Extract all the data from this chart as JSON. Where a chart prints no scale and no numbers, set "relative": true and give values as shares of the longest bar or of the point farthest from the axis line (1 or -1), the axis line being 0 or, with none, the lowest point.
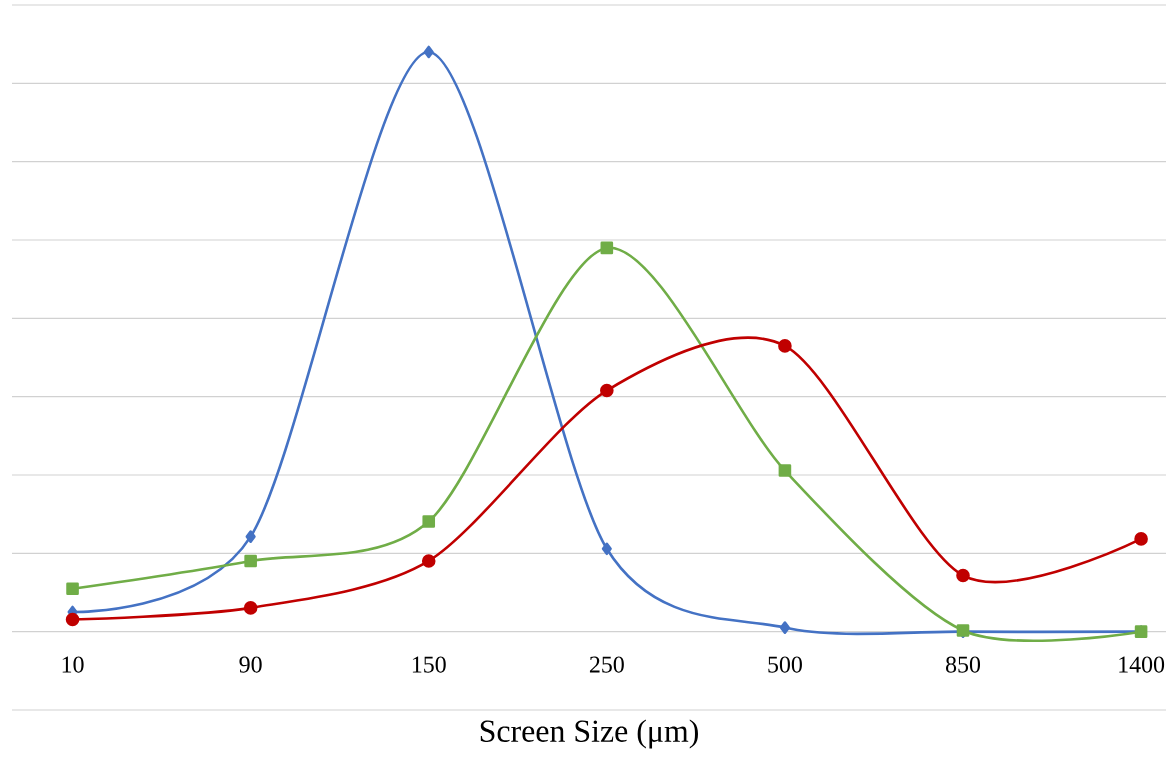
{
  "chart_data": {
    "type": "line",
    "relative": true,
    "xlabel": "Screen Size (μm)",
    "categories": [
      "10",
      "90",
      "150",
      "250",
      "500",
      "850",
      "1400"
    ],
    "grid": "y",
    "series": [
      {
        "color": "#4472c4",
        "marker": "diamond",
        "values": [
          0.034,
          0.164,
          1,
          0.143,
          0.007,
          0,
          0
        ]
      },
      {
        "color": "#70ad47",
        "marker": "square",
        "values": [
          0.074,
          0.122,
          0.19,
          0.662,
          0.278,
          0.002,
          0
        ]
      },
      {
        "color": "#c00000",
        "marker": "circle",
        "values": [
          0.021,
          0.041,
          0.122,
          0.416,
          0.493,
          0.097,
          0.16
        ]
      }
    ]
  }
}
